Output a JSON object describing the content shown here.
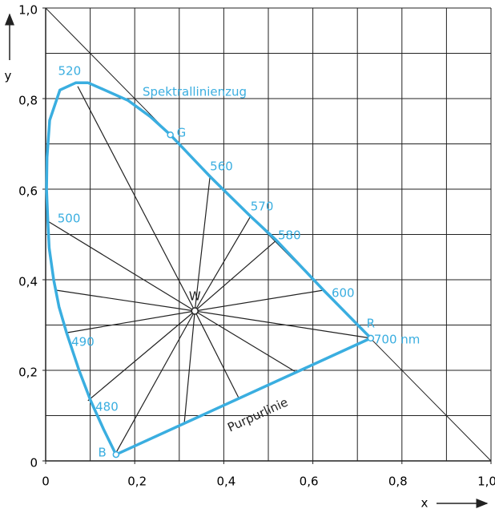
{
  "chart_data": {
    "type": "chromaticity",
    "x_label": "x",
    "y_label": "y",
    "xlim": [
      0,
      1.0
    ],
    "ylim": [
      0,
      1.0
    ],
    "xticks": [
      0,
      {
        "value": 0.2,
        "label": "0,2"
      },
      {
        "value": 0.4,
        "label": "0,4"
      },
      {
        "value": 0.6,
        "label": "0,6"
      },
      {
        "value": 0.8,
        "label": "0,8"
      },
      {
        "value": 1.0,
        "label": "1,0"
      }
    ],
    "yticks": [
      0,
      {
        "value": 0.2,
        "label": "0,2"
      },
      {
        "value": 0.4,
        "label": "0,4"
      },
      {
        "value": 0.6,
        "label": "0,6"
      },
      {
        "value": 0.8,
        "label": "0,8"
      },
      {
        "value": 1.0,
        "label": "1,0"
      }
    ],
    "xgrid": [
      0.1,
      0.2,
      0.3,
      0.4,
      0.5,
      0.6,
      0.7,
      0.8,
      0.9,
      1.0
    ],
    "ygrid": [
      0.1,
      0.2,
      0.3,
      0.4,
      0.5,
      0.6,
      0.7,
      0.8,
      0.9,
      1.0
    ],
    "grid": true,
    "locus": {
      "name": "Spektrallinienzug",
      "color": "#3aaee0",
      "x": [
        0.158,
        0.13,
        0.101,
        0.075,
        0.047,
        0.03,
        0.018,
        0.008,
        0.005,
        0.002,
        0.003,
        0.009,
        0.032,
        0.068,
        0.095,
        0.13,
        0.185,
        0.235,
        0.28,
        0.369,
        0.46,
        0.518,
        0.624,
        0.73
      ],
      "y": [
        0.014,
        0.07,
        0.133,
        0.2,
        0.283,
        0.34,
        0.4,
        0.47,
        0.527,
        0.6,
        0.67,
        0.752,
        0.819,
        0.835,
        0.835,
        0.82,
        0.796,
        0.76,
        0.72,
        0.628,
        0.54,
        0.487,
        0.377,
        0.271
      ]
    },
    "purple_line": {
      "name": "Purpurlinie"
    },
    "points": [
      {
        "label": "520",
        "x": 0.068,
        "y": 0.835
      },
      {
        "label": "500",
        "x": 0.005,
        "y": 0.527
      },
      {
        "label": "490",
        "x": 0.047,
        "y": 0.283
      },
      {
        "label": "480",
        "x": 0.101,
        "y": 0.133
      },
      {
        "label": "560",
        "x": 0.369,
        "y": 0.628
      },
      {
        "label": "570",
        "x": 0.46,
        "y": 0.54
      },
      {
        "label": "580",
        "x": 0.518,
        "y": 0.487
      },
      {
        "label": "600",
        "x": 0.624,
        "y": 0.377
      },
      {
        "label": "700 nm",
        "x": 0.73,
        "y": 0.271
      },
      {
        "label": "G",
        "x": 0.28,
        "y": 0.72
      },
      {
        "label": "R",
        "x": 0.73,
        "y": 0.271
      },
      {
        "label": "B",
        "x": 0.158,
        "y": 0.014
      }
    ],
    "white_point": {
      "label": "W",
      "x": 0.335,
      "y": 0.331
    },
    "spokes": {
      "x": [
        0.072,
        0.002,
        0.023,
        0.047,
        0.095,
        0.158,
        0.311,
        0.434,
        0.559,
        0.73,
        0.624,
        0.518,
        0.46,
        0.369
      ],
      "y": [
        0.827,
        0.531,
        0.377,
        0.283,
        0.133,
        0.018,
        0.08,
        0.138,
        0.198,
        0.271,
        0.377,
        0.487,
        0.54,
        0.628
      ]
    }
  }
}
